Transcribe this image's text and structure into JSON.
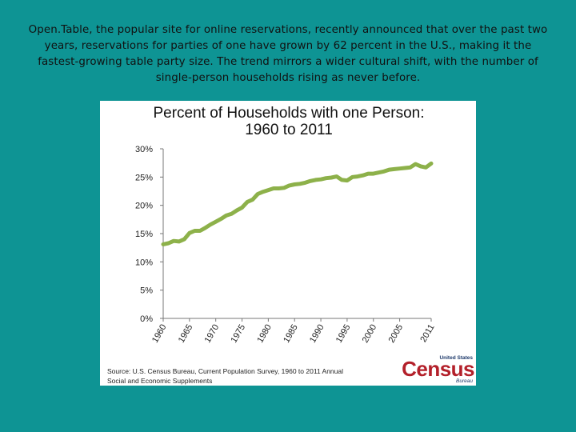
{
  "caption": "Open.Table, the popular site for online reservations, recently announced that over the past two years, reservations for parties of one have grown by 62 percent in the U.S., making it the fastest-growing table party size. The trend mirrors a wider cultural shift, with the number of single-person households rising as never before.",
  "chart_data": {
    "type": "line",
    "title": "Percent of Households with one Person:",
    "subtitle": "1960 to 2011",
    "xlabel": "",
    "ylabel": "",
    "ylim": [
      0,
      30
    ],
    "xlim": [
      1960,
      2011
    ],
    "yticks": [
      "0%",
      "5%",
      "10%",
      "15%",
      "20%",
      "25%",
      "30%"
    ],
    "xticks": [
      "1960",
      "1965",
      "1970",
      "1975",
      "1980",
      "1985",
      "1990",
      "1995",
      "2000",
      "2005",
      "2011"
    ],
    "grid": false,
    "line_color": "#8db14a",
    "x": [
      1960,
      1961,
      1962,
      1963,
      1964,
      1965,
      1966,
      1967,
      1968,
      1969,
      1970,
      1971,
      1972,
      1973,
      1974,
      1975,
      1976,
      1977,
      1978,
      1979,
      1980,
      1981,
      1982,
      1983,
      1984,
      1985,
      1986,
      1987,
      1988,
      1989,
      1990,
      1991,
      1992,
      1993,
      1994,
      1995,
      1996,
      1997,
      1998,
      1999,
      2000,
      2001,
      2002,
      2003,
      2004,
      2005,
      2006,
      2007,
      2008,
      2009,
      2010,
      2011
    ],
    "values": [
      13.1,
      13.3,
      13.7,
      13.6,
      14.0,
      15.1,
      15.5,
      15.5,
      16.0,
      16.6,
      17.1,
      17.6,
      18.2,
      18.5,
      19.1,
      19.6,
      20.6,
      21.0,
      22.0,
      22.4,
      22.7,
      23.0,
      23.0,
      23.1,
      23.5,
      23.7,
      23.8,
      24.0,
      24.3,
      24.5,
      24.6,
      24.8,
      24.9,
      25.1,
      24.5,
      24.4,
      25.0,
      25.1,
      25.3,
      25.6,
      25.6,
      25.8,
      26.0,
      26.3,
      26.4,
      26.5,
      26.6,
      26.7,
      27.3,
      26.9,
      26.7,
      27.4
    ]
  },
  "source": {
    "line1": "Source: U.S. Census Bureau, Current Population Survey, 1960 to 2011 Annual",
    "line2": "Social and Economic Supplements"
  },
  "logo": {
    "top": "United States",
    "main": "Census",
    "bottom": "Bureau"
  }
}
